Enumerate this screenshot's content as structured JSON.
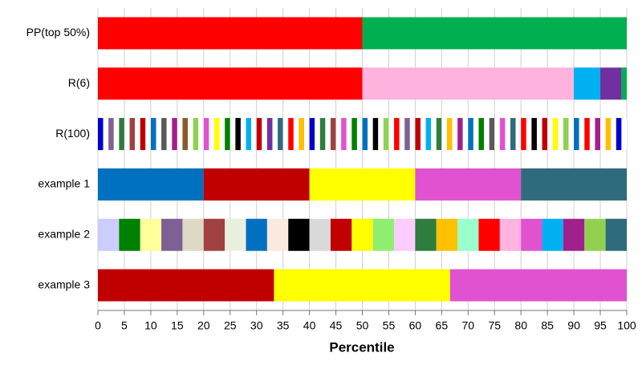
{
  "chart_data": {
    "type": "stacked_barh",
    "categories": [
      "PP(top 50%)",
      "R(6)",
      "R(100)",
      "example 1",
      "example 2",
      "example 3"
    ],
    "stacks": [
      {
        "values": [
          50,
          50
        ],
        "colors": [
          "#ff0000",
          "#00b050"
        ]
      },
      {
        "values": [
          50,
          40,
          5,
          4,
          1
        ],
        "colors": [
          "#ff0000",
          "#ffb3de",
          "#00b0f0",
          "#7030a0",
          "#00b050"
        ]
      },
      {
        "values": [
          1,
          1,
          1,
          1,
          1,
          1,
          1,
          1,
          1,
          1,
          1,
          1,
          1,
          1,
          1,
          1,
          1,
          1,
          1,
          1,
          1,
          1,
          1,
          1,
          1,
          1,
          1,
          1,
          1,
          1,
          1,
          1,
          1,
          1,
          1,
          1,
          1,
          1,
          1,
          1,
          1,
          1,
          1,
          1,
          1,
          1,
          1,
          1,
          1,
          1,
          1,
          1,
          1,
          1,
          1,
          1,
          1,
          1,
          1,
          1,
          1,
          1,
          1,
          1,
          1,
          1,
          1,
          1,
          1,
          1,
          1,
          1,
          1,
          1,
          1,
          1,
          1,
          1,
          1,
          1,
          1,
          1,
          1,
          1,
          1,
          1,
          1,
          1,
          1,
          1,
          1,
          1,
          1,
          1,
          1,
          1,
          1,
          1,
          1,
          1
        ],
        "colors": [
          "#0000cc",
          "#ffffff",
          "#7f6095",
          "#ffffff",
          "#2e7d3e",
          "#ffffff",
          "#a04040",
          "#ffffff",
          "#c00000",
          "#ffffff",
          "#0070c0",
          "#ffffff",
          "#5a5a5a",
          "#ffffff",
          "#a0208c",
          "#ffffff",
          "#8b5a2b",
          "#ffffff",
          "#92d050",
          "#ffffff",
          "#e052d0",
          "#ffffff",
          "#ffff00",
          "#ffffff",
          "#008000",
          "#ffffff",
          "#000000",
          "#ffffff",
          "#00b0f0",
          "#ffffff",
          "#c00000",
          "#ffffff",
          "#7030a0",
          "#ffffff",
          "#2f6b7c",
          "#ffffff",
          "#ff0000",
          "#ffffff",
          "#ffc000",
          "#ffffff",
          "#0000cc",
          "#ffffff",
          "#2e7d3e",
          "#ffffff",
          "#a04040",
          "#ffffff",
          "#e052d0",
          "#ffffff",
          "#008000",
          "#ffffff",
          "#0070c0",
          "#ffffff",
          "#000000",
          "#ffffff",
          "#92d050",
          "#ffffff",
          "#ff0000",
          "#ffffff",
          "#7f6095",
          "#ffffff",
          "#c00000",
          "#ffffff",
          "#00b0f0",
          "#ffffff",
          "#2e7d3e",
          "#ffffff",
          "#ffc000",
          "#ffffff",
          "#a0208c",
          "#ffffff",
          "#0070c0",
          "#ffffff",
          "#008000",
          "#ffffff",
          "#5a5a5a",
          "#ffffff",
          "#e052d0",
          "#ffffff",
          "#2f6b7c",
          "#ffffff",
          "#ff0000",
          "#ffffff",
          "#000000",
          "#ffffff",
          "#c00000",
          "#ffffff",
          "#ffff00",
          "#ffffff",
          "#92d050",
          "#ffffff",
          "#0070c0",
          "#ffffff",
          "#ff0000",
          "#ffffff",
          "#a0208c",
          "#ffffff",
          "#ffc000",
          "#ffffff",
          "#0000cc",
          "#ffffff"
        ]
      },
      {
        "values": [
          20,
          20,
          20,
          20,
          20
        ],
        "colors": [
          "#0070c0",
          "#c00000",
          "#ffff00",
          "#e052d0",
          "#2f6b7c"
        ]
      },
      {
        "values": [
          4,
          4,
          4,
          4,
          4,
          4,
          4,
          4,
          4,
          4,
          4,
          4,
          4,
          4,
          4,
          4,
          4,
          4,
          4,
          4,
          4,
          4,
          4,
          4,
          4
        ],
        "colors": [
          "#ccccff",
          "#008000",
          "#ffff99",
          "#7f6095",
          "#ddd9c4",
          "#a04040",
          "#e9f0e0",
          "#0070c0",
          "#fae9dc",
          "#000000",
          "#d9d9d9",
          "#c00000",
          "#ffff00",
          "#90ee70",
          "#ffccff",
          "#2e7d3e",
          "#ffc000",
          "#99ffcc",
          "#ff0000",
          "#ffb3de",
          "#e052d0",
          "#00b0f0",
          "#a0208c",
          "#92d050",
          "#2f6b7c"
        ]
      },
      {
        "values": [
          33.3,
          33.3,
          33.4
        ],
        "colors": [
          "#c00000",
          "#ffff00",
          "#e052d0"
        ]
      }
    ],
    "xlim": [
      0,
      100
    ],
    "xticks": [
      0,
      5,
      10,
      15,
      20,
      25,
      30,
      35,
      40,
      45,
      50,
      55,
      60,
      65,
      70,
      75,
      80,
      85,
      90,
      95,
      100
    ],
    "xlabel": "Percentile",
    "grid": true
  }
}
